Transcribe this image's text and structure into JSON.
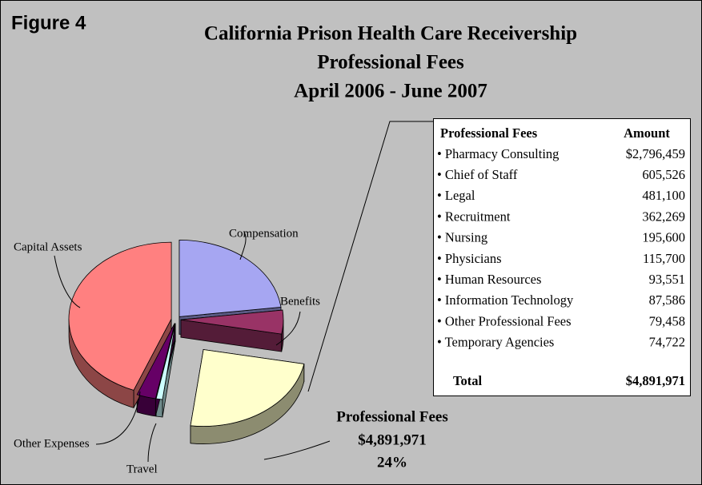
{
  "figure_label": "Figure 4",
  "chart_data": {
    "type": "pie",
    "title": [
      "California Prison Health Care Receivership",
      "Professional Fees",
      "April 2006 - June 2007"
    ],
    "categories": [
      "Compensation",
      "Benefits",
      "Professional Fees",
      "Travel",
      "Other Expenses",
      "Capital Assets"
    ],
    "values": [
      23,
      5,
      24,
      1,
      3,
      44
    ],
    "value_labels": [
      null,
      null,
      "24%",
      null,
      null,
      null
    ],
    "amount_label": "$4,891,971",
    "colors": [
      "#a6a6f2",
      "#993366",
      "#ffffcc",
      "#ccffff",
      "#660066",
      "#ff8080"
    ]
  },
  "table": {
    "header": [
      "Professional Fees",
      "Amount"
    ],
    "rows": [
      [
        "• Pharmacy Consulting",
        "$2,796,459"
      ],
      [
        "• Chief of Staff",
        "605,526"
      ],
      [
        "• Legal",
        "481,100"
      ],
      [
        "• Recruitment",
        "362,269"
      ],
      [
        "• Nursing",
        "195,600"
      ],
      [
        "• Physicians",
        "115,700"
      ],
      [
        "• Human Resources",
        "93,551"
      ],
      [
        "• Information Technology",
        "87,586"
      ],
      [
        "• Other Professional Fees",
        "79,458"
      ],
      [
        "• Temporary Agencies",
        "74,722"
      ]
    ],
    "total": [
      "Total",
      "$4,891,971"
    ]
  }
}
